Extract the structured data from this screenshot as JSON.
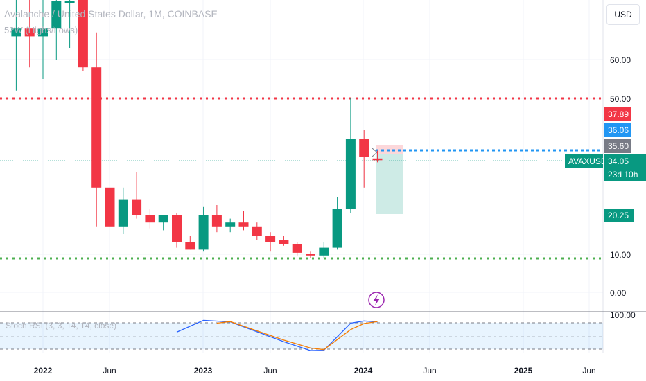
{
  "legend": {
    "title": "Avalanche / United States Dollar, 1M, COINBASE",
    "indicator": "52W (Highs/Lows)",
    "rsi": "Stoch RSI (3, 3, 14, 14, close)"
  },
  "currency_button": "USD",
  "price_axis": {
    "ticks": [
      "60.00",
      "50.00",
      "10.00",
      "0.00"
    ],
    "rsi_tick": "100.00"
  },
  "time_axis": {
    "labels": [
      "2022",
      "Jun",
      "2023",
      "Jun",
      "2024",
      "Jun",
      "2025",
      "Jun"
    ]
  },
  "price_tags": {
    "red": "37.89",
    "blue": "36.06",
    "gray": "35.60",
    "symbol": "AVAXUSD",
    "current": "34.05",
    "countdown": "23d 10h",
    "low": "20.25"
  },
  "colors": {
    "up": "#089981",
    "down": "#f23645",
    "blue": "#2196f3",
    "gray": "#787b86",
    "high_line": "#f23645",
    "low_line": "#4caf50",
    "rsi_k": "#2962ff",
    "rsi_d": "#f57c00"
  },
  "icons": {
    "event": "lightning-bolt-icon"
  },
  "chart_data": {
    "type": "candlestick",
    "interval": "1M",
    "ylim": [
      -3,
      78
    ],
    "high_line": 50.3,
    "low_line": 9.2,
    "candles": [
      {
        "x": "2021-11",
        "open": 66,
        "high": 88,
        "low": 52,
        "close": 68
      },
      {
        "x": "2021-12",
        "open": 68,
        "high": 92,
        "low": 58,
        "close": 66
      },
      {
        "x": "2022-01",
        "open": 66,
        "high": 80,
        "low": 55,
        "close": 68
      },
      {
        "x": "2022-02",
        "open": 68,
        "high": 85,
        "low": 60,
        "close": 75
      },
      {
        "x": "2022-03",
        "open": 75,
        "high": 98,
        "low": 63,
        "close": 75
      },
      {
        "x": "2022-04",
        "open": 80,
        "high": 82,
        "low": 57,
        "close": 58
      },
      {
        "x": "2022-05",
        "open": 58,
        "high": 67,
        "low": 17,
        "close": 27
      },
      {
        "x": "2022-06",
        "open": 27,
        "high": 28,
        "low": 13.5,
        "close": 17
      },
      {
        "x": "2022-07",
        "open": 17,
        "high": 27,
        "low": 15,
        "close": 24
      },
      {
        "x": "2022-08",
        "open": 24,
        "high": 31,
        "low": 19,
        "close": 20
      },
      {
        "x": "2022-09",
        "open": 20,
        "high": 21.5,
        "low": 16.5,
        "close": 18
      },
      {
        "x": "2022-10",
        "open": 18,
        "high": 20,
        "low": 16,
        "close": 19.9
      },
      {
        "x": "2022-11",
        "open": 20,
        "high": 20.5,
        "low": 11.5,
        "close": 13
      },
      {
        "x": "2022-12",
        "open": 13,
        "high": 14.5,
        "low": 11,
        "close": 11
      },
      {
        "x": "2023-01",
        "open": 11,
        "high": 22,
        "low": 10.5,
        "close": 20
      },
      {
        "x": "2023-02",
        "open": 20,
        "high": 22.5,
        "low": 15.5,
        "close": 17
      },
      {
        "x": "2023-03",
        "open": 17,
        "high": 19,
        "low": 15.5,
        "close": 18
      },
      {
        "x": "2023-04",
        "open": 18,
        "high": 21,
        "low": 16,
        "close": 17
      },
      {
        "x": "2023-05",
        "open": 17,
        "high": 18,
        "low": 13.5,
        "close": 14.5
      },
      {
        "x": "2023-06",
        "open": 14.5,
        "high": 15.5,
        "low": 10.5,
        "close": 13
      },
      {
        "x": "2023-07",
        "open": 13.5,
        "high": 14.5,
        "low": 12,
        "close": 12.5
      },
      {
        "x": "2023-08",
        "open": 12.5,
        "high": 13,
        "low": 9.5,
        "close": 10.2
      },
      {
        "x": "2023-09",
        "open": 10,
        "high": 10.5,
        "low": 8.8,
        "close": 9.5
      },
      {
        "x": "2023-10",
        "open": 9.5,
        "high": 13,
        "low": 8.9,
        "close": 11.5
      },
      {
        "x": "2023-11",
        "open": 11.5,
        "high": 24.5,
        "low": 11,
        "close": 21.5
      },
      {
        "x": "2023-12",
        "open": 21.5,
        "high": 50,
        "low": 20.5,
        "close": 39.5
      },
      {
        "x": "2024-01",
        "open": 39.5,
        "high": 41.8,
        "low": 27,
        "close": 35
      },
      {
        "x": "2024-02",
        "open": 34.5,
        "high": 36.5,
        "low": 33.5,
        "close": 34.05
      }
    ],
    "stoch_rsi": {
      "k": [
        [
          "2022-11",
          60
        ],
        [
          "2023-01",
          97
        ],
        [
          "2023-03",
          92
        ],
        [
          "2023-07",
          30
        ],
        [
          "2023-09",
          2
        ],
        [
          "2023-10",
          3
        ],
        [
          "2023-12",
          88
        ],
        [
          "2024-01",
          95
        ],
        [
          "2024-02",
          92
        ]
      ],
      "d": [
        [
          "2023-02",
          88
        ],
        [
          "2023-03",
          93
        ],
        [
          "2023-07",
          35
        ],
        [
          "2023-09",
          10
        ],
        [
          "2023-10",
          5
        ],
        [
          "2023-12",
          68
        ],
        [
          "2024-01",
          87
        ],
        [
          "2024-02",
          93
        ]
      ]
    }
  }
}
